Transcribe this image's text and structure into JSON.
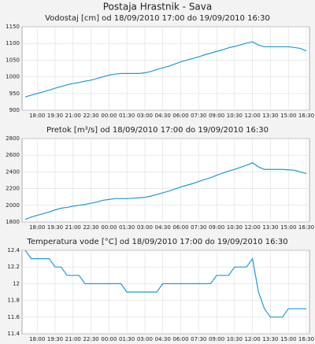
{
  "title": "Postaja Hrastnik - Sava",
  "chart_data": [
    {
      "type": "line",
      "title": "Vodostaj [cm] od 18/09/2010 17:00 do 19/09/2010 16:30",
      "categories": [
        null,
        null,
        "18:00",
        null,
        null,
        "19:30",
        null,
        null,
        "21:00",
        null,
        null,
        "22:30",
        null,
        null,
        "00:00",
        null,
        null,
        "01:30",
        null,
        null,
        "03:00",
        null,
        null,
        "04:30",
        null,
        null,
        "06:00",
        null,
        null,
        "07:30",
        null,
        null,
        "09:00",
        null,
        null,
        "10:30",
        null,
        null,
        "12:00",
        null,
        null,
        "13:30",
        null,
        null,
        "15:00",
        null,
        null,
        "16:30"
      ],
      "series": [
        {
          "color": "#1f9ad6",
          "values": [
            940,
            945,
            950,
            955,
            960,
            966,
            971,
            976,
            980,
            983,
            987,
            990,
            995,
            1000,
            1005,
            1008,
            1010,
            1010,
            1010,
            1010,
            1012,
            1016,
            1022,
            1027,
            1032,
            1038,
            1045,
            1050,
            1055,
            1060,
            1066,
            1071,
            1076,
            1081,
            1087,
            1091,
            1096,
            1101,
            1105,
            1095,
            1090,
            1090,
            1090,
            1090,
            1090,
            1088,
            1085,
            1078
          ]
        }
      ],
      "ylim": [
        900,
        1150
      ],
      "yticks": [
        900,
        950,
        1000,
        1050,
        1100,
        1150
      ],
      "grid": true
    },
    {
      "type": "line",
      "title": "Pretok [m³/s] od 18/09/2010 17:00 do 19/09/2010 16:30",
      "categories": [
        null,
        null,
        "18:00",
        null,
        null,
        "19:30",
        null,
        null,
        "21:00",
        null,
        null,
        "22:30",
        null,
        null,
        "00:00",
        null,
        null,
        "01:30",
        null,
        null,
        "03:00",
        null,
        null,
        "04:30",
        null,
        null,
        "06:00",
        null,
        null,
        "07:30",
        null,
        null,
        "09:00",
        null,
        null,
        "10:30",
        null,
        null,
        "12:00",
        null,
        null,
        "13:30",
        null,
        null,
        "15:00",
        null,
        null,
        "16:30"
      ],
      "series": [
        {
          "color": "#1f9ad6",
          "values": [
            1830,
            1860,
            1880,
            1900,
            1920,
            1945,
            1965,
            1975,
            1990,
            2000,
            2010,
            2025,
            2040,
            2060,
            2070,
            2080,
            2080,
            2080,
            2085,
            2090,
            2095,
            2110,
            2130,
            2150,
            2170,
            2195,
            2220,
            2240,
            2260,
            2285,
            2310,
            2330,
            2360,
            2385,
            2410,
            2430,
            2455,
            2480,
            2510,
            2460,
            2430,
            2430,
            2430,
            2430,
            2425,
            2420,
            2400,
            2380
          ]
        }
      ],
      "ylim": [
        1800,
        2800
      ],
      "yticks": [
        1800,
        2000,
        2200,
        2400,
        2600,
        2800
      ],
      "grid": true
    },
    {
      "type": "line",
      "title": "Temperatura vode [°C] od 18/09/2010 17:00 do 19/09/2010 16:30",
      "categories": [
        null,
        null,
        "18:00",
        null,
        null,
        "19:30",
        null,
        null,
        "21:00",
        null,
        null,
        "22:30",
        null,
        null,
        "00:00",
        null,
        null,
        "01:30",
        null,
        null,
        "03:00",
        null,
        null,
        "04:30",
        null,
        null,
        "06:00",
        null,
        null,
        "07:30",
        null,
        null,
        "09:00",
        null,
        null,
        "10:30",
        null,
        null,
        "12:00",
        null,
        null,
        "13:30",
        null,
        null,
        "15:00",
        null,
        null,
        "16:30"
      ],
      "series": [
        {
          "color": "#1f9ad6",
          "values": [
            12.4,
            12.3,
            12.3,
            12.3,
            12.3,
            12.2,
            12.2,
            12.1,
            12.1,
            12.1,
            12.0,
            12.0,
            12.0,
            12.0,
            12.0,
            12.0,
            12.0,
            11.9,
            11.9,
            11.9,
            11.9,
            11.9,
            11.9,
            12.0,
            12.0,
            12.0,
            12.0,
            12.0,
            12.0,
            12.0,
            12.0,
            12.0,
            12.1,
            12.1,
            12.1,
            12.2,
            12.2,
            12.2,
            12.3,
            11.9,
            11.7,
            11.6,
            11.6,
            11.6,
            11.7,
            11.7,
            11.7,
            11.7
          ]
        }
      ],
      "ylim": [
        11.4,
        12.4
      ],
      "yticks": [
        11.4,
        11.6,
        11.8,
        12,
        12.2,
        12.4
      ],
      "grid": true
    }
  ]
}
